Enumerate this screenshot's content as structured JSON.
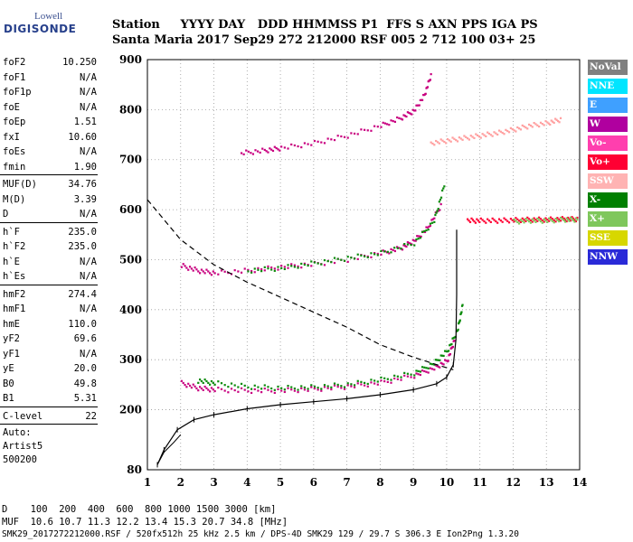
{
  "logo": {
    "line1": "Lowell",
    "line2": "DIGISONDE"
  },
  "header": {
    "row1": "Station     YYYY DAY   DDD HHMMSS P1  FFS S AXN PPS IGA PS",
    "row2": "Santa Maria 2017 Sep29 272 212000 RSF 005 2 712 100 03+ 25"
  },
  "params": {
    "group1": [
      {
        "k": "foF2",
        "v": "10.250"
      },
      {
        "k": "foF1",
        "v": "N/A"
      },
      {
        "k": "foF1p",
        "v": "N/A"
      },
      {
        "k": "foE",
        "v": "N/A"
      },
      {
        "k": "foEp",
        "v": "1.51"
      },
      {
        "k": "fxI",
        "v": "10.60"
      },
      {
        "k": "foEs",
        "v": "N/A"
      },
      {
        "k": "fmin",
        "v": "1.90"
      }
    ],
    "group2": [
      {
        "k": "MUF(D)",
        "v": "34.76"
      },
      {
        "k": "M(D)",
        "v": "3.39"
      },
      {
        "k": "D",
        "v": "N/A"
      }
    ],
    "group3": [
      {
        "k": "h`F",
        "v": "235.0"
      },
      {
        "k": "h`F2",
        "v": "235.0"
      },
      {
        "k": "h`E",
        "v": "N/A"
      },
      {
        "k": "h`Es",
        "v": "N/A"
      }
    ],
    "group4": [
      {
        "k": "hmF2",
        "v": "274.4"
      },
      {
        "k": "hmF1",
        "v": "N/A"
      },
      {
        "k": "hmE",
        "v": "110.0"
      },
      {
        "k": "yF2",
        "v": "69.6"
      },
      {
        "k": "yF1",
        "v": "N/A"
      },
      {
        "k": "yE",
        "v": "20.0"
      },
      {
        "k": "B0",
        "v": "49.8"
      },
      {
        "k": "B1",
        "v": "5.31"
      }
    ],
    "clevel": {
      "k": "C-level",
      "v": "22"
    },
    "auto": [
      "Auto:",
      "Artist5",
      "500200"
    ]
  },
  "legend": [
    {
      "label": "NoVal",
      "color": "#808080"
    },
    {
      "label": "NNE",
      "color": "#00e5ff"
    },
    {
      "label": "E",
      "color": "#3fa0ff"
    },
    {
      "label": "W",
      "color": "#b0009f"
    },
    {
      "label": "Vo-",
      "color": "#ff3fae"
    },
    {
      "label": "Vo+",
      "color": "#ff0033"
    },
    {
      "label": "SSW",
      "color": "#ffb3b3"
    },
    {
      "label": "X-",
      "color": "#007f00"
    },
    {
      "label": "X+",
      "color": "#7fc75c"
    },
    {
      "label": "SSE",
      "color": "#d7d700"
    },
    {
      "label": "NNW",
      "color": "#2a2ad8"
    }
  ],
  "chart_data": {
    "type": "scatter",
    "xlabel": "",
    "ylabel": "",
    "xlim": [
      1,
      14
    ],
    "ylim": [
      80,
      900
    ],
    "xticks": [
      "1",
      "2",
      "3",
      "4",
      "5",
      "6",
      "7",
      "8",
      "9",
      "10",
      "11",
      "12",
      "13",
      "14"
    ],
    "yticks": [
      "80",
      "200",
      "300",
      "400",
      "500",
      "600",
      "700",
      "800",
      "900"
    ],
    "ytick_values": [
      80,
      200,
      300,
      400,
      500,
      600,
      700,
      800,
      900
    ],
    "series": [
      {
        "color": "#c8007f",
        "points": [
          [
            2.0,
            255
          ],
          [
            2.5,
            245
          ],
          [
            3,
            242
          ],
          [
            4,
            240
          ],
          [
            5,
            240
          ],
          [
            6,
            243
          ],
          [
            7,
            248
          ],
          [
            8,
            256
          ],
          [
            9,
            270
          ],
          [
            9.6,
            285
          ],
          [
            10.0,
            300
          ],
          [
            10.2,
            340
          ]
        ]
      },
      {
        "color": "#0a8a0a",
        "points": [
          [
            2.5,
            260
          ],
          [
            3,
            255
          ],
          [
            4,
            248
          ],
          [
            5,
            245
          ],
          [
            6,
            247
          ],
          [
            7,
            252
          ],
          [
            8,
            262
          ],
          [
            9,
            275
          ],
          [
            9.6,
            295
          ],
          [
            10,
            320
          ],
          [
            10.3,
            360
          ],
          [
            10.45,
            410
          ]
        ]
      },
      {
        "color": "#c8007f",
        "points": [
          [
            2.0,
            490
          ],
          [
            2.5,
            480
          ],
          [
            3,
            475
          ],
          [
            4,
            480
          ],
          [
            5,
            487
          ],
          [
            6,
            493
          ],
          [
            7,
            502
          ],
          [
            8,
            515
          ],
          [
            8.6,
            525
          ],
          [
            9,
            540
          ],
          [
            9.4,
            565
          ],
          [
            9.8,
            610
          ]
        ]
      },
      {
        "color": "#0a8a0a",
        "points": [
          [
            4,
            480
          ],
          [
            5,
            485
          ],
          [
            6,
            495
          ],
          [
            7,
            505
          ],
          [
            8,
            515
          ],
          [
            9,
            535
          ],
          [
            9.6,
            580
          ],
          [
            9.9,
            650
          ]
        ]
      },
      {
        "color": "#c8007f",
        "points": [
          [
            3.8,
            715
          ],
          [
            4.5,
            720
          ],
          [
            5,
            725
          ],
          [
            6,
            735
          ],
          [
            7,
            750
          ],
          [
            8,
            770
          ],
          [
            8.6,
            785
          ],
          [
            9,
            800
          ],
          [
            9.3,
            830
          ],
          [
            9.5,
            870
          ]
        ]
      },
      {
        "color": "#ff9f9f",
        "points": [
          [
            9.5,
            735
          ],
          [
            10,
            740
          ],
          [
            10.5,
            745
          ],
          [
            11,
            750
          ],
          [
            11.5,
            755
          ],
          [
            12,
            762
          ],
          [
            12.5,
            770
          ],
          [
            13,
            775
          ],
          [
            13.4,
            782
          ]
        ]
      },
      {
        "color": "#ff0033",
        "points": [
          [
            10.6,
            580
          ],
          [
            11,
            580
          ],
          [
            11.5,
            580
          ],
          [
            12,
            581
          ],
          [
            12.5,
            582
          ],
          [
            13,
            582
          ],
          [
            13.5,
            583
          ],
          [
            13.9,
            583
          ]
        ]
      },
      {
        "color": "#7fc75c",
        "points": [
          [
            12,
            578
          ],
          [
            12.5,
            580
          ],
          [
            13,
            580
          ],
          [
            13.5,
            582
          ],
          [
            13.9,
            582
          ]
        ]
      }
    ],
    "profile": [
      [
        1.3,
        90
      ],
      [
        1.5,
        120
      ],
      [
        1.9,
        160
      ],
      [
        2.4,
        180
      ],
      [
        3,
        190
      ],
      [
        4,
        202
      ],
      [
        5,
        210
      ],
      [
        6,
        216
      ],
      [
        7,
        222
      ],
      [
        8,
        230
      ],
      [
        9,
        240
      ],
      [
        9.7,
        252
      ],
      [
        10.0,
        265
      ],
      [
        10.2,
        290
      ],
      [
        10.28,
        340
      ],
      [
        10.3,
        430
      ],
      [
        10.3,
        560
      ]
    ],
    "profile_low": [
      [
        1.3,
        90
      ],
      [
        1.5,
        115
      ],
      [
        1.8,
        135
      ],
      [
        2.0,
        150
      ]
    ],
    "dashed": [
      [
        1.0,
        620
      ],
      [
        1.5,
        580
      ],
      [
        2,
        540
      ],
      [
        3,
        490
      ],
      [
        4,
        455
      ],
      [
        5,
        425
      ],
      [
        6,
        395
      ],
      [
        7,
        365
      ],
      [
        8,
        330
      ],
      [
        9,
        305
      ],
      [
        9.7,
        290
      ],
      [
        10.2,
        280
      ]
    ],
    "footer": {
      "d_row": "D    100  200  400  600  800 1000 1500 3000 [km]",
      "muf_row": "MUF  10.6 10.7 11.3 12.2 13.4 15.3 20.7 34.8 [MHz]",
      "file_row": "SMK29_2017272212000.RSF / 520fx512h 25 kHz 2.5 km / DPS-4D SMK29 129 / 29.7 S 306.3 E Ion2Png 1.3.20"
    }
  }
}
